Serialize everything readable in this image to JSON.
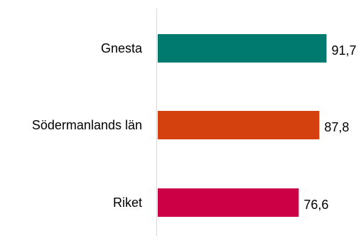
{
  "chart_data": {
    "type": "bar",
    "orientation": "horizontal",
    "categories": [
      "Gnesta",
      "Södermanlands län",
      "Riket"
    ],
    "values": [
      91.7,
      87.8,
      76.6
    ],
    "value_labels": [
      "91,7",
      "87,8",
      "76,6"
    ],
    "colors": [
      "#007a6e",
      "#d4410f",
      "#cc0044"
    ],
    "axis_color": "#d9d9d9",
    "xlim": [
      0,
      100
    ],
    "title": "",
    "xlabel": "",
    "ylabel": "",
    "grid": false,
    "legend": "none"
  }
}
